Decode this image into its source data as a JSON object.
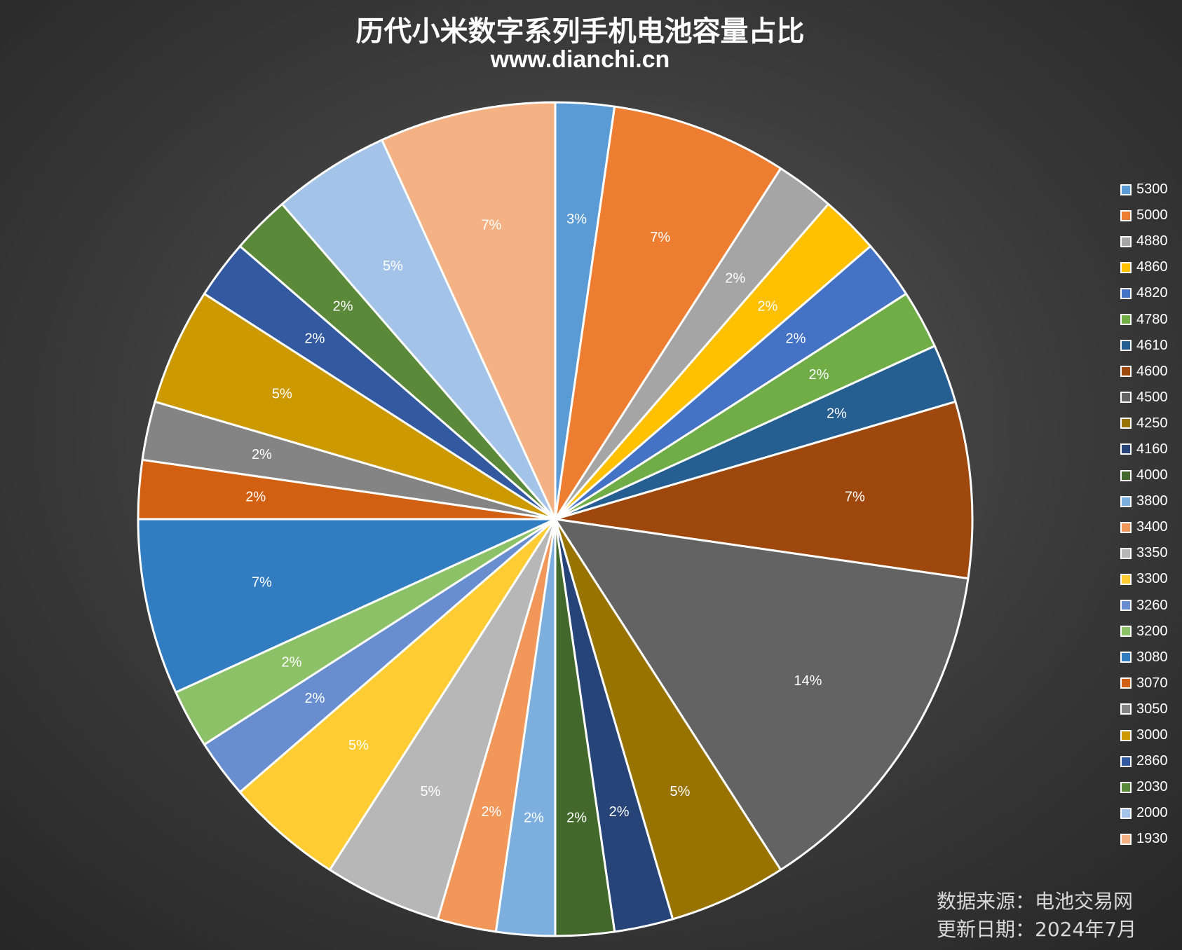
{
  "header": {
    "title": "历代小米数字系列手机电池容量占比",
    "subtitle": "www.dianchi.cn"
  },
  "footer": {
    "source": "数据来源：电池交易网",
    "updated": "更新日期：2024年7月"
  },
  "chart_data": {
    "type": "pie",
    "title": "历代小米数字系列手机电池容量占比",
    "legend_position": "right",
    "slices": [
      {
        "name": "5300",
        "count": 1,
        "label": "3%",
        "color": "#5b9bd5"
      },
      {
        "name": "5000",
        "count": 3,
        "label": "7%",
        "color": "#ed7d31"
      },
      {
        "name": "4880",
        "count": 1,
        "label": "2%",
        "color": "#a5a5a5"
      },
      {
        "name": "4860",
        "count": 1,
        "label": "2%",
        "color": "#ffc000"
      },
      {
        "name": "4820",
        "count": 1,
        "label": "2%",
        "color": "#4472c4"
      },
      {
        "name": "4780",
        "count": 1,
        "label": "2%",
        "color": "#70ad47"
      },
      {
        "name": "4610",
        "count": 1,
        "label": "2%",
        "color": "#255e91"
      },
      {
        "name": "4600",
        "count": 3,
        "label": "7%",
        "color": "#9e480e"
      },
      {
        "name": "4500",
        "count": 6,
        "label": "14%",
        "color": "#636363"
      },
      {
        "name": "4250",
        "count": 2,
        "label": "5%",
        "color": "#997300"
      },
      {
        "name": "4160",
        "count": 1,
        "label": "2%",
        "color": "#264478"
      },
      {
        "name": "4000",
        "count": 1,
        "label": "2%",
        "color": "#43682b"
      },
      {
        "name": "3800",
        "count": 1,
        "label": "2%",
        "color": "#7cafdd"
      },
      {
        "name": "3400",
        "count": 1,
        "label": "2%",
        "color": "#f1975a"
      },
      {
        "name": "3350",
        "count": 2,
        "label": "5%",
        "color": "#b7b7b7"
      },
      {
        "name": "3300",
        "count": 2,
        "label": "5%",
        "color": "#ffcd33"
      },
      {
        "name": "3260",
        "count": 1,
        "label": "2%",
        "color": "#698ed0"
      },
      {
        "name": "3200",
        "count": 1,
        "label": "2%",
        "color": "#8cc168"
      },
      {
        "name": "3080",
        "count": 3,
        "label": "7%",
        "color": "#327dc2"
      },
      {
        "name": "3070",
        "count": 1,
        "label": "2%",
        "color": "#d26012"
      },
      {
        "name": "3050",
        "count": 1,
        "label": "2%",
        "color": "#848484"
      },
      {
        "name": "3000",
        "count": 2,
        "label": "5%",
        "color": "#cc9a00"
      },
      {
        "name": "2860",
        "count": 1,
        "label": "2%",
        "color": "#335aa1"
      },
      {
        "name": "2030",
        "count": 1,
        "label": "2%",
        "color": "#5a8a39"
      },
      {
        "name": "2000",
        "count": 2,
        "label": "5%",
        "color": "#a3c4e8"
      },
      {
        "name": "1930",
        "count": 3,
        "label": "7%",
        "color": "#f4b183"
      }
    ]
  }
}
